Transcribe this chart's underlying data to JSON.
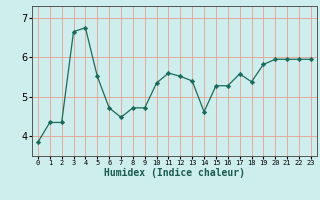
{
  "x": [
    0,
    1,
    2,
    3,
    4,
    5,
    6,
    7,
    8,
    9,
    10,
    11,
    12,
    13,
    14,
    15,
    16,
    17,
    18,
    19,
    20,
    21,
    22,
    23
  ],
  "y": [
    3.85,
    4.35,
    4.35,
    6.65,
    6.75,
    5.52,
    4.72,
    4.48,
    4.72,
    4.72,
    5.35,
    5.6,
    5.52,
    5.4,
    4.62,
    5.28,
    5.28,
    5.58,
    5.38,
    5.82,
    5.95,
    5.95,
    5.95,
    5.95
  ],
  "xlabel": "Humidex (Indice chaleur)",
  "ylim": [
    3.5,
    7.3
  ],
  "xlim": [
    -0.5,
    23.5
  ],
  "line_color": "#1a6b5a",
  "marker_color": "#1a6b5a",
  "bg_color": "#ceeeed",
  "grid_color": "#e8a090",
  "yticks": [
    4,
    5,
    6,
    7
  ],
  "xticks": [
    0,
    1,
    2,
    3,
    4,
    5,
    6,
    7,
    8,
    9,
    10,
    11,
    12,
    13,
    14,
    15,
    16,
    17,
    18,
    19,
    20,
    21,
    22,
    23
  ]
}
